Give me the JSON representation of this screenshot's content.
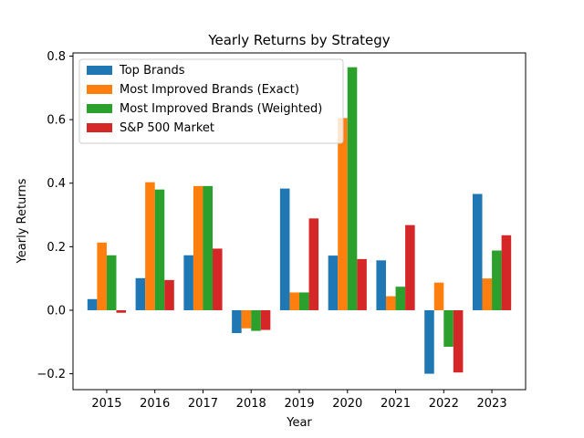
{
  "chart_data": {
    "type": "bar",
    "title": "Yearly Returns by Strategy",
    "xlabel": "Year",
    "ylabel": "Yearly Returns",
    "categories": [
      "2015",
      "2016",
      "2017",
      "2018",
      "2019",
      "2020",
      "2021",
      "2022",
      "2023"
    ],
    "ylim": [
      -0.25,
      0.81
    ],
    "yticks": [
      -0.2,
      0.0,
      0.2,
      0.4,
      0.6,
      0.8
    ],
    "ytick_labels": [
      "−0.2",
      "0.0",
      "0.2",
      "0.4",
      "0.6",
      "0.8"
    ],
    "grid": false,
    "legend_position": "top-left",
    "series": [
      {
        "name": "Top Brands",
        "color": "#1f77b4",
        "values": [
          0.035,
          0.101,
          0.173,
          -0.072,
          0.383,
          0.172,
          0.157,
          -0.2,
          0.366
        ]
      },
      {
        "name": "Most Improved Brands (Exact)",
        "color": "#ff7f0e",
        "values": [
          0.213,
          0.403,
          0.391,
          -0.057,
          0.056,
          0.605,
          0.044,
          0.087,
          0.1
        ]
      },
      {
        "name": "Most Improved Brands (Weighted)",
        "color": "#2ca02c",
        "values": [
          0.173,
          0.38,
          0.391,
          -0.065,
          0.056,
          0.765,
          0.074,
          -0.115,
          0.188
        ]
      },
      {
        "name": "S&P 500 Market",
        "color": "#d62728",
        "values": [
          -0.008,
          0.095,
          0.194,
          -0.062,
          0.289,
          0.161,
          0.268,
          -0.196,
          0.236
        ]
      }
    ]
  }
}
